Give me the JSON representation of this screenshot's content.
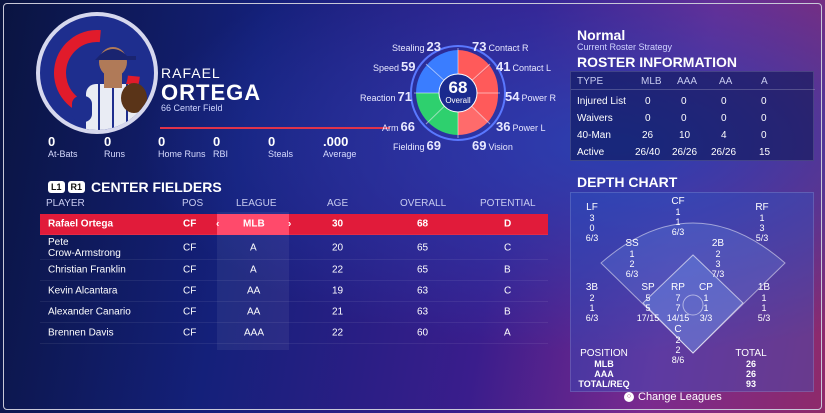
{
  "player": {
    "first_name": "RAFAEL",
    "last_name": "ORTEGA",
    "number_position": "66  Center Field",
    "stats": [
      {
        "value": "0",
        "label": "At-Bats"
      },
      {
        "value": "0",
        "label": "Runs"
      },
      {
        "value": "0",
        "label": "Home Runs"
      },
      {
        "value": "0",
        "label": "RBI"
      },
      {
        "value": "0",
        "label": "Steals"
      },
      {
        "value": ".000",
        "label": "Average"
      }
    ]
  },
  "ratings": {
    "overall": "68",
    "overall_label": "Overall",
    "items": [
      {
        "label": "Stealing",
        "value": "23"
      },
      {
        "label": "Contact R",
        "value": "73"
      },
      {
        "label": "Speed",
        "value": "59"
      },
      {
        "label": "Contact L",
        "value": "41"
      },
      {
        "label": "Reaction",
        "value": "71"
      },
      {
        "label": "Power R",
        "value": "54"
      },
      {
        "label": "Arm",
        "value": "66"
      },
      {
        "label": "Power L",
        "value": "36"
      },
      {
        "label": "Fielding",
        "value": "69"
      },
      {
        "label": "Vision",
        "value": "69"
      }
    ]
  },
  "list": {
    "bumper_left": "L1",
    "bumper_right": "R1",
    "title": "CENTER FIELDERS",
    "headers": {
      "player": "PLAYER",
      "pos": "POS",
      "league": "LEAGUE",
      "age": "AGE",
      "overall": "OVERALL",
      "potential": "POTENTIAL"
    },
    "rows": [
      {
        "name": "Rafael Ortega",
        "pos": "CF",
        "league": "MLB",
        "age": "30",
        "overall": "68",
        "potential": "D"
      },
      {
        "name": "Pete\nCrow-Armstrong",
        "pos": "CF",
        "league": "A",
        "age": "20",
        "overall": "65",
        "potential": "C"
      },
      {
        "name": "Christian Franklin",
        "pos": "CF",
        "league": "A",
        "age": "22",
        "overall": "65",
        "potential": "B"
      },
      {
        "name": "Kevin Alcantara",
        "pos": "CF",
        "league": "AA",
        "age": "19",
        "overall": "63",
        "potential": "C"
      },
      {
        "name": "Alexander Canario",
        "pos": "CF",
        "league": "AA",
        "age": "21",
        "overall": "63",
        "potential": "B"
      },
      {
        "name": "Brennen Davis",
        "pos": "CF",
        "league": "AAA",
        "age": "22",
        "overall": "60",
        "potential": "A"
      }
    ],
    "arrow_left": "‹",
    "arrow_right": "›"
  },
  "strategy": {
    "value": "Normal",
    "label": "Current Roster Strategy"
  },
  "roster": {
    "title": "ROSTER INFORMATION",
    "headers": [
      "TYPE",
      "MLB",
      "AAA",
      "AA",
      "A"
    ],
    "rows": [
      [
        "Injured List",
        "0",
        "0",
        "0",
        "0"
      ],
      [
        "Waivers",
        "0",
        "0",
        "0",
        "0"
      ],
      [
        "40-Man",
        "26",
        "10",
        "4",
        "0"
      ],
      [
        "Active",
        "26/40",
        "26/26",
        "26/26",
        "15"
      ]
    ]
  },
  "depth": {
    "title": "DEPTH CHART",
    "positions": {
      "LF": [
        "3",
        "0",
        "6/3"
      ],
      "CF": [
        "1",
        "1",
        "6/3"
      ],
      "RF": [
        "1",
        "3",
        "5/3"
      ],
      "SS": [
        "1",
        "2",
        "6/3"
      ],
      "2B": [
        "2",
        "3",
        "7/3"
      ],
      "3B": [
        "2",
        "1",
        "6/3"
      ],
      "SP": [
        "5",
        "5",
        "17/15"
      ],
      "RP": [
        "7",
        "7",
        "14/15"
      ],
      "CP": [
        "1",
        "1",
        "3/3"
      ],
      "1B": [
        "1",
        "1",
        "5/3"
      ],
      "C": [
        "2",
        "2",
        "8/6"
      ]
    },
    "position_label": "POSITION",
    "total_label": "TOTAL",
    "summary": [
      {
        "label": "MLB",
        "value": "26"
      },
      {
        "label": "AAA",
        "value": "26"
      },
      {
        "label": "TOTAL/REQ",
        "value": "93"
      }
    ]
  },
  "footer": {
    "button_glyph": "○",
    "change_leagues": "Change Leagues"
  }
}
